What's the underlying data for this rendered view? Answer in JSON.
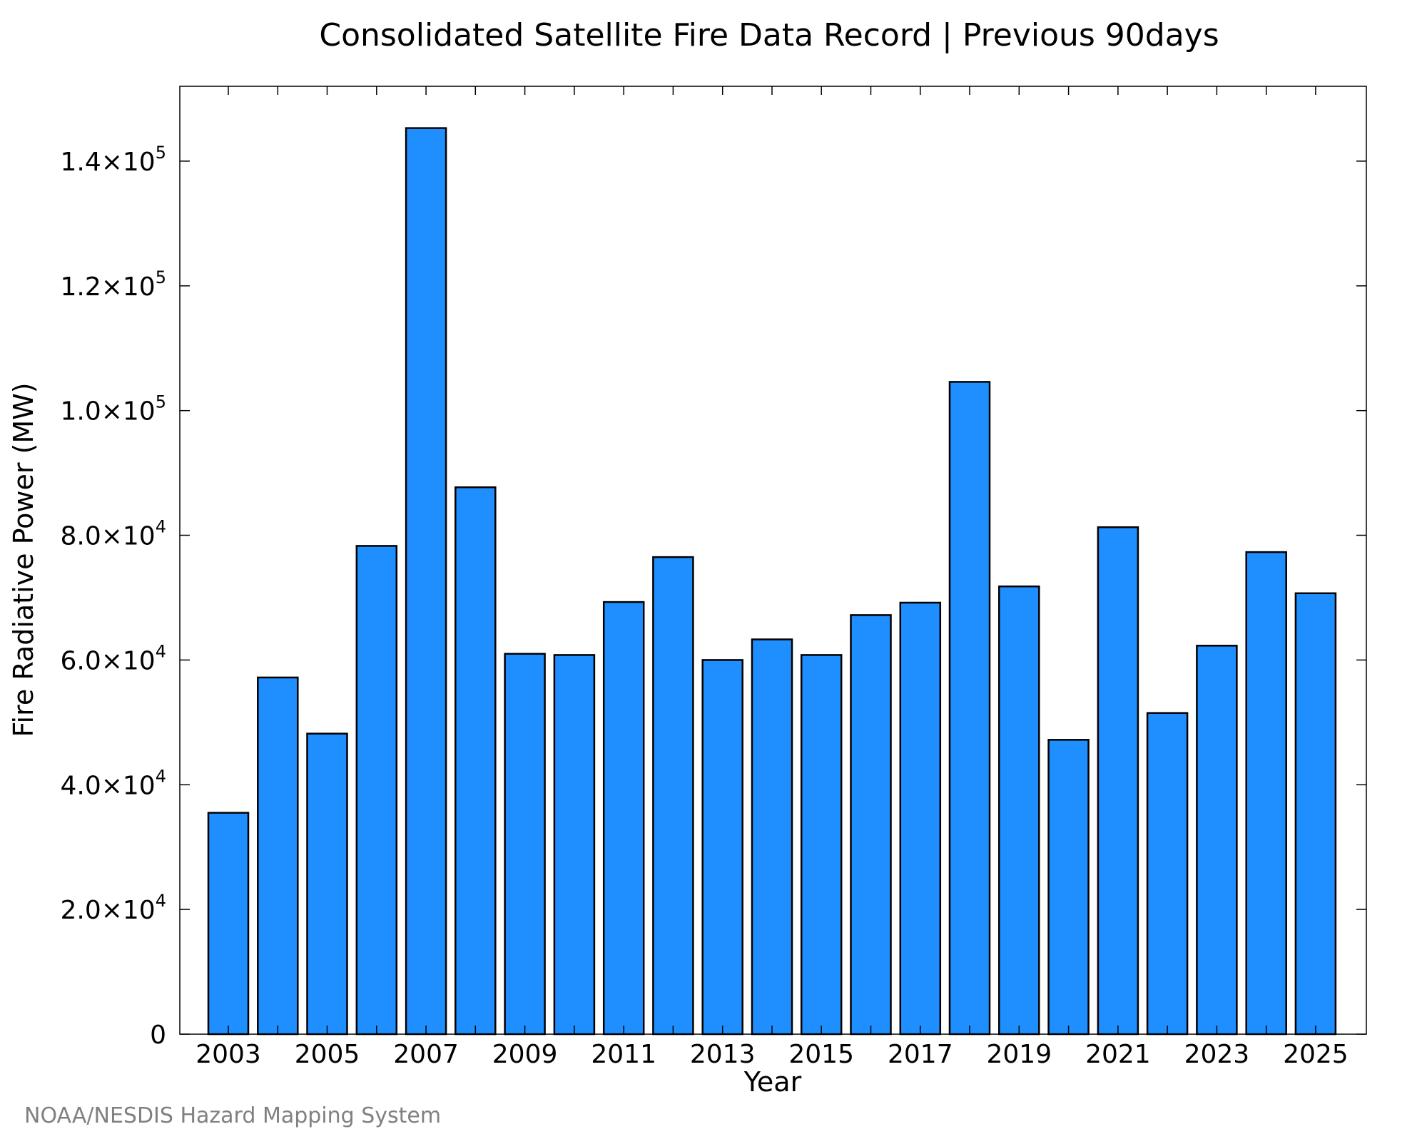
{
  "chart_data": {
    "type": "bar",
    "title": "Consolidated Satellite Fire Data Record | Previous 90days",
    "xlabel": "Year",
    "ylabel": "Fire Radiative Power (MW)",
    "credit": "NOAA/NESDIS Hazard Mapping System",
    "categories": [
      "2003",
      "2004",
      "2005",
      "2006",
      "2007",
      "2008",
      "2009",
      "2010",
      "2011",
      "2012",
      "2013",
      "2014",
      "2015",
      "2016",
      "2017",
      "2018",
      "2019",
      "2020",
      "2021",
      "2022",
      "2023",
      "2024",
      "2025"
    ],
    "x_tick_labels": [
      "2003",
      "2005",
      "2007",
      "2009",
      "2011",
      "2013",
      "2015",
      "2017",
      "2019",
      "2021",
      "2023",
      "2025"
    ],
    "values": [
      35500,
      57200,
      48200,
      78300,
      145300,
      87700,
      61000,
      60800,
      69300,
      76500,
      60000,
      63300,
      60800,
      67200,
      69200,
      104600,
      71800,
      47200,
      81300,
      51500,
      62300,
      77300,
      70700
    ],
    "ylim": [
      0,
      152000
    ],
    "y_ticks": [
      {
        "value": 0,
        "mantissa": "0",
        "exponent": ""
      },
      {
        "value": 20000,
        "mantissa": "2.0×10",
        "exponent": "4"
      },
      {
        "value": 40000,
        "mantissa": "4.0×10",
        "exponent": "4"
      },
      {
        "value": 60000,
        "mantissa": "6.0×10",
        "exponent": "4"
      },
      {
        "value": 80000,
        "mantissa": "8.0×10",
        "exponent": "4"
      },
      {
        "value": 100000,
        "mantissa": "1.0×10",
        "exponent": "5"
      },
      {
        "value": 120000,
        "mantissa": "1.2×10",
        "exponent": "5"
      },
      {
        "value": 140000,
        "mantissa": "1.4×10",
        "exponent": "5"
      }
    ],
    "bar_color": "#1f8fff",
    "bar_edge_color": "#000000",
    "grid": false,
    "legend": "none"
  }
}
